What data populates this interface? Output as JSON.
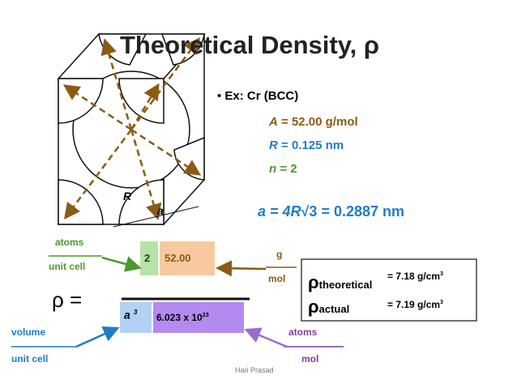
{
  "title": "Theoretical Density, ρ",
  "bullet": "Ex: Cr (BCC)",
  "givens": [
    {
      "var": "A",
      "rest": "= 52.00 g/mol"
    },
    {
      "var": "R",
      "rest": "= 0.125 nm"
    },
    {
      "var": "n",
      "rest": "= 2"
    }
  ],
  "lattice": {
    "lhs": "a = 4",
    "r": "R",
    "root": "√3",
    "rhs": "= 0.2887 nm"
  },
  "figure": {
    "radius_label": "R",
    "edge_label": "a"
  },
  "formula": {
    "rho": "ρ =",
    "n_label": {
      "top": "atoms",
      "bottom": "unit cell"
    },
    "n_value": "2",
    "a_value": "52.00",
    "a_label": {
      "top": "g",
      "bottom": "mol"
    },
    "volume_base": "a",
    "volume_exp": "3",
    "avogadro_base": "6.023 x 10",
    "avogadro_exp": "23",
    "v_label": {
      "top": "volume",
      "bottom": "unit cell"
    },
    "na_label": {
      "top": "atoms",
      "bottom": "mol"
    }
  },
  "results": [
    {
      "symbol": "ρ",
      "sub": "theoretical",
      "value": "= 7.18 g/cm",
      "exp": "3"
    },
    {
      "symbol": "ρ",
      "sub": "actual",
      "value": "= 7.19 g/cm",
      "exp": "3"
    }
  ],
  "footer": "Hari Prasad"
}
